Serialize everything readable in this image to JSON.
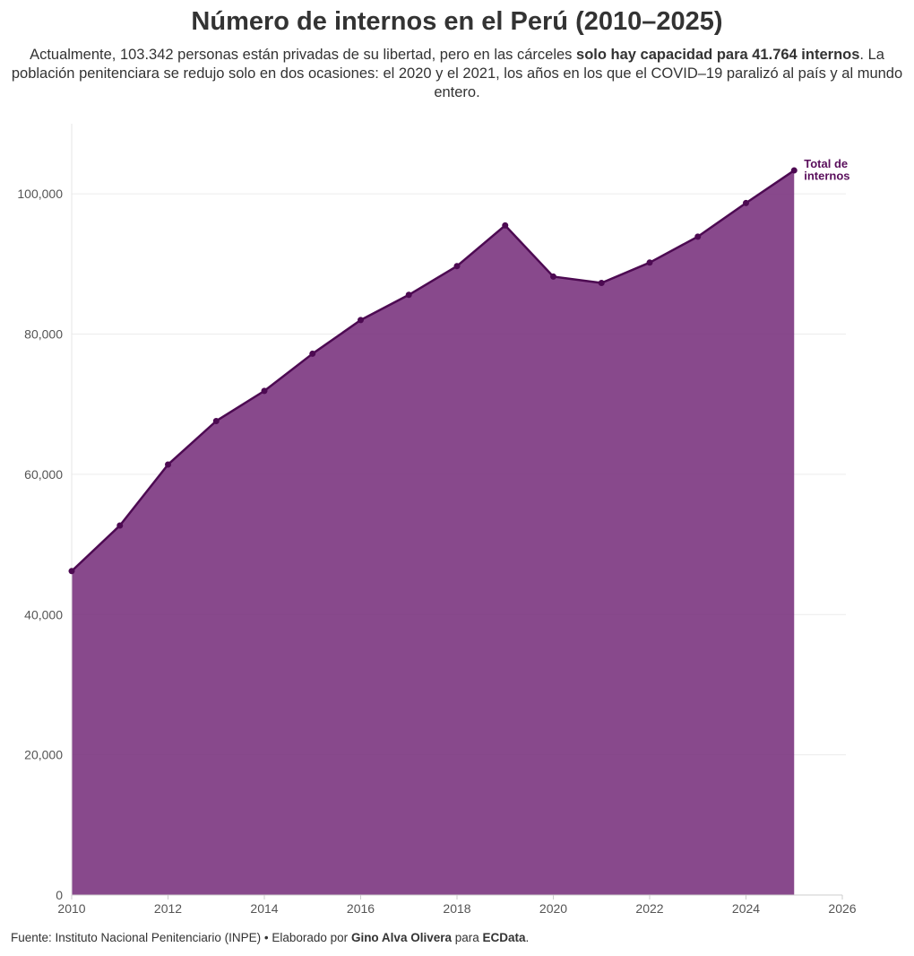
{
  "title": "Número de internos en el Perú (2010–2025)",
  "subtitle": {
    "part1": "Actualmente, 103.342 personas están privadas de su libertad, pero en las cárceles ",
    "bold1": "solo hay capacidad para 41.764 internos",
    "part2": ". La población penitenciara se redujo solo en dos ocasiones: el 2020 y el 2021, los años en los que el COVID–19 paralizó al país y al mundo entero."
  },
  "footer": {
    "source": "Fuente: Instituto Nacional Penitenciario (INPE) • Elaborado por ",
    "author": "Gino Alva Olivera",
    "mid": " para ",
    "outlet": "ECData",
    "end": "."
  },
  "colors": {
    "area": "#7b3580",
    "line": "#4d0a52",
    "grid": "#ececec"
  },
  "chart_data": {
    "type": "area",
    "title": "Número de internos en el Perú (2010–2025)",
    "xlabel": "",
    "ylabel": "",
    "xlim": [
      2010,
      2026
    ],
    "ylim": [
      0,
      110000
    ],
    "grid": true,
    "x_ticks": [
      "2010",
      "2012",
      "2014",
      "2016",
      "2018",
      "2020",
      "2022",
      "2024",
      "2026"
    ],
    "y_ticks": [
      "0",
      "20,000",
      "40,000",
      "60,000",
      "80,000",
      "100,000"
    ],
    "series": [
      {
        "name": "Total de internos",
        "label_lines": [
          "Total de",
          "internos"
        ],
        "x": [
          2010,
          2011,
          2012,
          2013,
          2014,
          2015,
          2016,
          2017,
          2018,
          2019,
          2020,
          2021,
          2022,
          2023,
          2024,
          2025
        ],
        "values": [
          46200,
          52700,
          61400,
          67600,
          71900,
          77200,
          82000,
          85600,
          89700,
          95500,
          88200,
          87300,
          90200,
          93900,
          98700,
          103342
        ]
      }
    ]
  }
}
